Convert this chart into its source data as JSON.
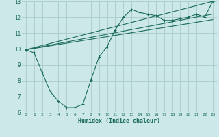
{
  "xlabel": "Humidex (Indice chaleur)",
  "bg_color": "#cce8e8",
  "grid_color": "#aacaca",
  "line_color": "#1a6b5a",
  "xlim": [
    -0.5,
    23.5
  ],
  "ylim": [
    6,
    13
  ],
  "xticks": [
    0,
    1,
    2,
    3,
    4,
    5,
    6,
    7,
    8,
    9,
    10,
    11,
    12,
    13,
    14,
    15,
    16,
    17,
    18,
    19,
    20,
    21,
    22,
    23
  ],
  "yticks": [
    6,
    7,
    8,
    9,
    10,
    11,
    12,
    13
  ],
  "line1_x": [
    0,
    1,
    2,
    3,
    4,
    5,
    6,
    7,
    8,
    9,
    10,
    11,
    12,
    13,
    14,
    15,
    16,
    17,
    18,
    19,
    20,
    21,
    22,
    23
  ],
  "line1_y": [
    9.95,
    9.75,
    8.5,
    7.3,
    6.7,
    6.3,
    6.3,
    6.5,
    8.05,
    9.5,
    10.15,
    11.2,
    12.0,
    12.5,
    12.3,
    12.2,
    12.1,
    11.8,
    11.8,
    11.9,
    12.0,
    12.2,
    12.0,
    13.0
  ],
  "line2_x": [
    0,
    23
  ],
  "line2_y": [
    9.95,
    13.0
  ],
  "line3_x": [
    0,
    23
  ],
  "line3_y": [
    9.95,
    11.85
  ],
  "line4_x": [
    0,
    23
  ],
  "line4_y": [
    9.95,
    12.2
  ]
}
